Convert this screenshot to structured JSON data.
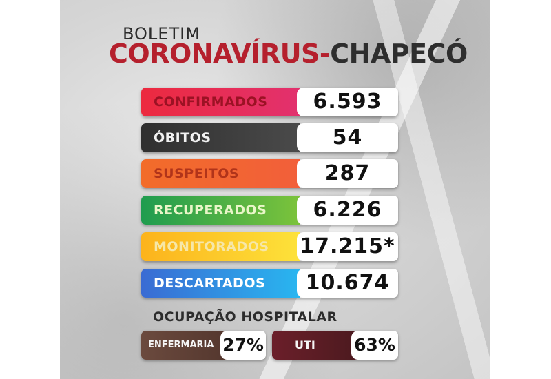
{
  "header": {
    "title_top": "BOLETIM",
    "title_main_part1": "CORONAVÍRUS-",
    "title_main_part2": "CHAPECÓ"
  },
  "stats": [
    {
      "label": "CONFIRMADOS",
      "value": "6.593"
    },
    {
      "label": "ÓBITOS",
      "value": "54"
    },
    {
      "label": "SUSPEITOS",
      "value": "287"
    },
    {
      "label": "RECUPERADOS",
      "value": "6.226"
    },
    {
      "label": "MONITORADOS",
      "value": "17.215*"
    },
    {
      "label": "DESCARTADOS",
      "value": "10.674"
    }
  ],
  "hospital": {
    "title": "OCUPAÇÃO HOSPITALAR",
    "enfermaria": {
      "label": "ENFERMARIA",
      "value": "27%"
    },
    "uti": {
      "label": "UTI",
      "value": "63%"
    }
  },
  "colors": {
    "confirmados": "#ec2a3f",
    "obitos": "#2f2f2f",
    "suspeitos": "#f26c2a",
    "recuperados": "#1f9c4f",
    "monitorados": "#fcb31c",
    "descartados": "#3a6bd3",
    "enfermaria": "#6b4a3e",
    "uti": "#6b1f2a",
    "title_red": "#b5202d"
  }
}
